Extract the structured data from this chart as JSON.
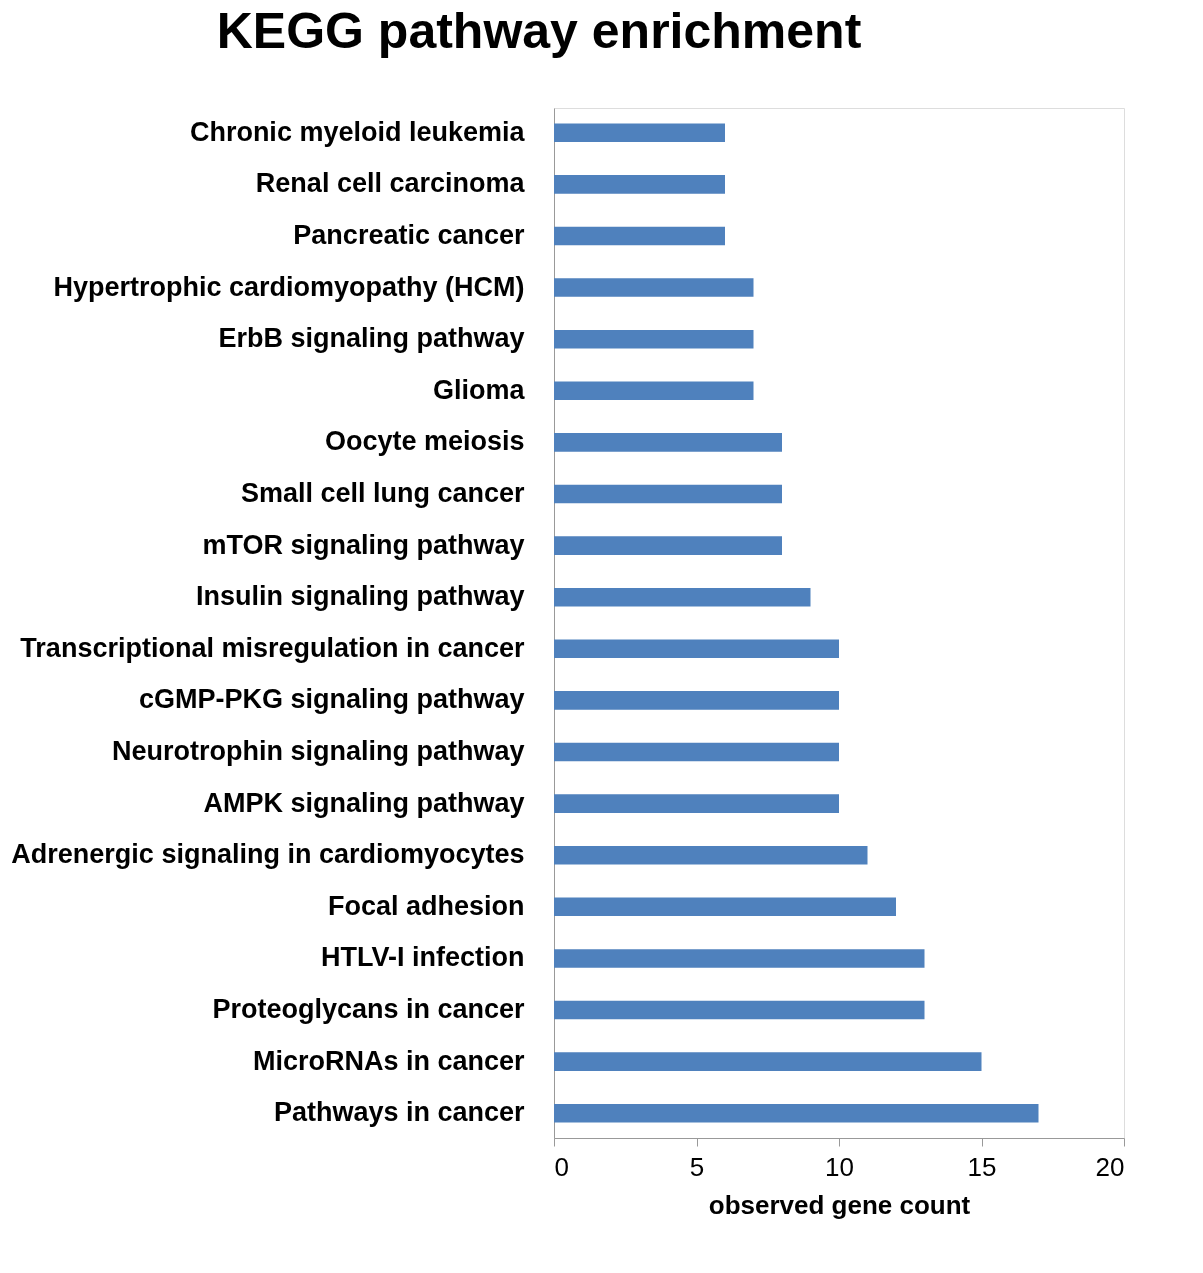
{
  "chart_data": {
    "type": "bar",
    "orientation": "horizontal",
    "title": "KEGG pathway enrichment",
    "xlabel": "observed gene count",
    "categories": [
      "Chronic myeloid leukemia",
      "Renal cell carcinoma",
      "Pancreatic cancer",
      "Hypertrophic cardiomyopathy (HCM)",
      "ErbB signaling pathway",
      "Glioma",
      "Oocyte meiosis",
      "Small cell lung cancer",
      "mTOR signaling pathway",
      "Insulin signaling pathway",
      "Transcriptional misregulation in cancer",
      "cGMP-PKG signaling pathway",
      "Neurotrophin signaling pathway",
      "AMPK signaling pathway",
      "Adrenergic signaling in cardiomyocytes",
      "Focal adhesion",
      "HTLV-I infection",
      "Proteoglycans in cancer",
      "MicroRNAs in cancer",
      "Pathways in cancer"
    ],
    "values": [
      6,
      6,
      6,
      7,
      7,
      7,
      8,
      8,
      8,
      9,
      10,
      10,
      10,
      10,
      11,
      12,
      13,
      13,
      15,
      17
    ],
    "color": "#4f81bd",
    "xlim": [
      0,
      20
    ],
    "xticks": [
      0,
      5,
      10,
      15,
      20
    ],
    "grid": false
  }
}
